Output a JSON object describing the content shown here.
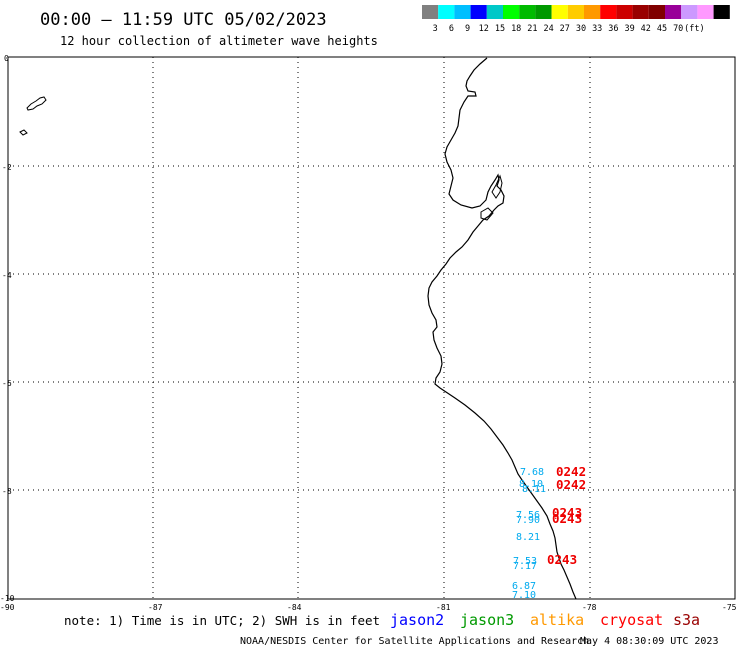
{
  "header": {
    "title": "00:00 – 11:59 UTC 05/02/2023",
    "subtitle": "12 hour collection of altimeter wave heights"
  },
  "color_scale": {
    "colors": [
      "#808080",
      "#00ffff",
      "#00bfff",
      "#0000ff",
      "#00c8c8",
      "#00ff00",
      "#00bb00",
      "#009900",
      "#ffff00",
      "#ffcc00",
      "#ff9900",
      "#ff0000",
      "#cc0000",
      "#990000",
      "#800000",
      "#990099",
      "#cc99ff",
      "#ff99ff",
      "#000000"
    ],
    "labels": [
      "3",
      "6",
      "9",
      "12",
      "15",
      "18",
      "21",
      "24",
      "27",
      "30",
      "33",
      "36",
      "39",
      "42",
      "45",
      "70",
      "(ft)"
    ]
  },
  "axes": {
    "x_ticks": [
      "-90",
      "-87",
      "-84",
      "-81",
      "-78",
      "-75"
    ],
    "y_ticks": [
      "0",
      "-2",
      "-4",
      "-6",
      "-8",
      "-10"
    ]
  },
  "observations": [
    {
      "value": "7.68",
      "color": "#00aaee"
    },
    {
      "value": "8.10",
      "color": "#00aaee"
    },
    {
      "value": "8.11",
      "color": "#00aaee"
    },
    {
      "value": "7.56",
      "color": "#00aaee"
    },
    {
      "value": "7.90",
      "color": "#00aaee"
    },
    {
      "value": "8.21",
      "color": "#00aaee"
    },
    {
      "value": "7.53",
      "color": "#00aaee"
    },
    {
      "value": "7.17",
      "color": "#00aaee"
    },
    {
      "value": "6.87",
      "color": "#00aaee"
    },
    {
      "value": "7.10",
      "color": "#00aaee"
    }
  ],
  "pass_times": [
    {
      "value": "0242",
      "color": "#ee0000"
    },
    {
      "value": "0242",
      "color": "#ee0000"
    },
    {
      "value": "0243",
      "color": "#ee0000"
    },
    {
      "value": "0243",
      "color": "#ee0000"
    },
    {
      "value": "0243",
      "color": "#ee0000"
    }
  ],
  "note": "note: 1) Time is in UTC; 2) SWH is in feet",
  "legend": [
    {
      "name": "jason2",
      "color": "#0000ff"
    },
    {
      "name": "jason3",
      "color": "#009900"
    },
    {
      "name": "altika",
      "color": "#ff9900"
    },
    {
      "name": "cryosat",
      "color": "#ff0000"
    },
    {
      "name": "s3a",
      "color": "#990000"
    }
  ],
  "footer": {
    "credit": "NOAA/NESDIS Center for Satellite Applications and Research",
    "timestamp": "May  4 08:30:09 UTC 2023"
  }
}
